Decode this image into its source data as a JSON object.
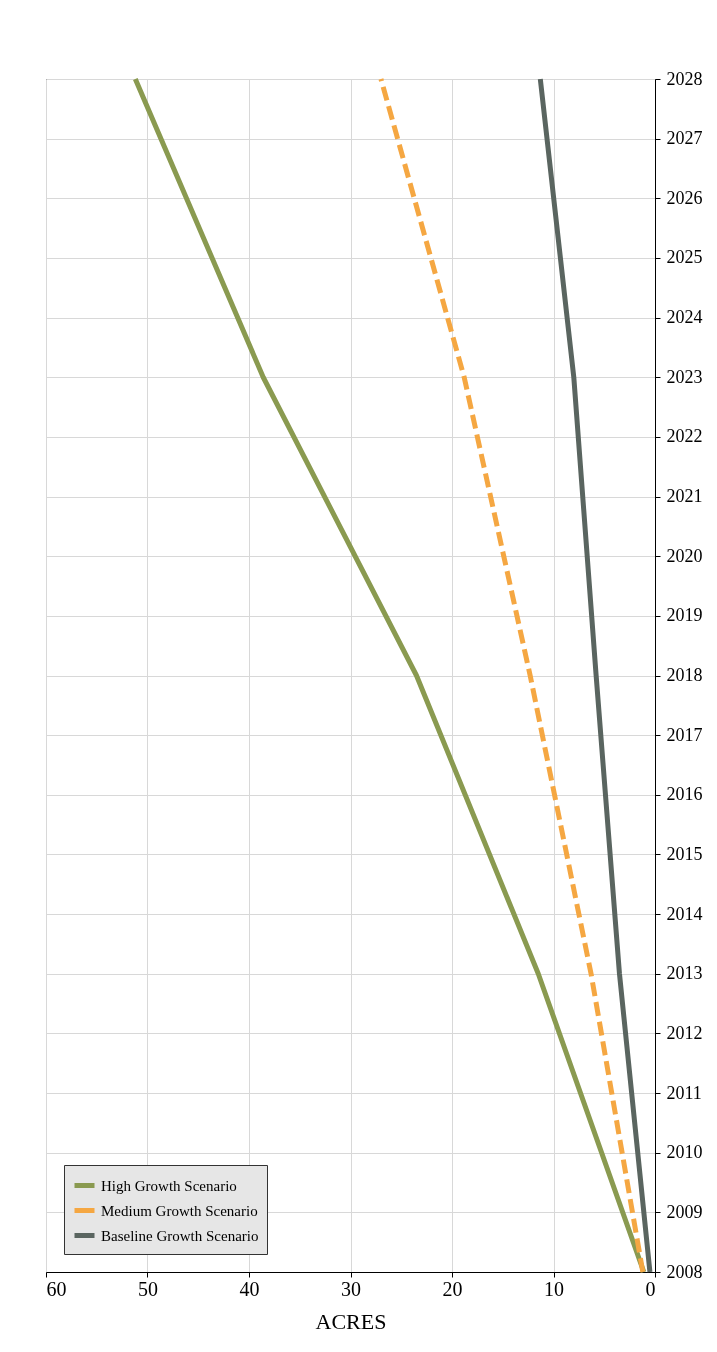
{
  "chart_data": {
    "type": "line",
    "xlabel": "ACRES",
    "xlim": [
      60,
      0
    ],
    "xticks": [
      60,
      50,
      40,
      30,
      20,
      10,
      0
    ],
    "ylim": [
      2008,
      2028
    ],
    "yticks": [
      2008,
      2009,
      2010,
      2011,
      2012,
      2013,
      2014,
      2015,
      2016,
      2017,
      2018,
      2019,
      2020,
      2021,
      2022,
      2023,
      2024,
      2025,
      2026,
      2027,
      2028
    ],
    "grid": true,
    "legend": "bottom left",
    "series": [
      {
        "name": "High Growth Scenario",
        "color": "#8a9a50",
        "line_style": "solid",
        "x": [
          1.1,
          11.5,
          23.5,
          38.6,
          51.2
        ],
        "values": [
          2008,
          2013,
          2018,
          2023,
          2028
        ]
      },
      {
        "name": "Medium Growth Scenario",
        "color": "#f5a742",
        "line_style": "dashed",
        "x": [
          1.2,
          6.3,
          12.3,
          18.8,
          27
        ],
        "values": [
          2008,
          2013,
          2018,
          2023,
          2028
        ]
      },
      {
        "name": "Baseline Growth Scenario",
        "color": "#5a6560",
        "line_style": "solid",
        "x": [
          0.5,
          3.5,
          5.8,
          8.0,
          11.3
        ],
        "values": [
          2008,
          2013,
          2018,
          2023,
          2028
        ]
      }
    ]
  }
}
